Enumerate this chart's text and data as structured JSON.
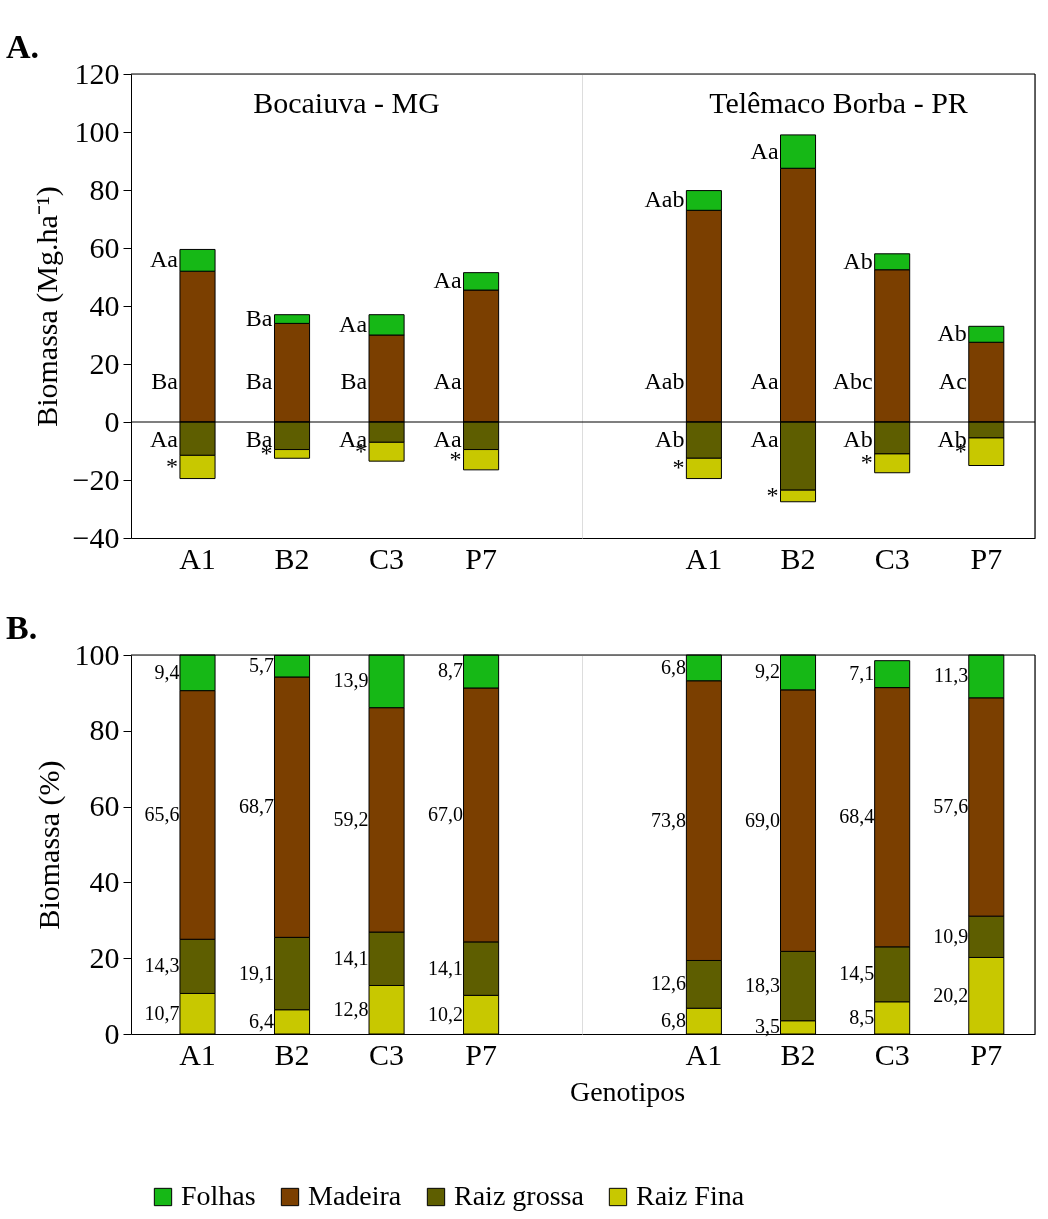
{
  "chart_data": [
    {
      "type": "bar",
      "stacked": true,
      "title": "A.",
      "subtitle": "Bocaiuva - MG",
      "ylabel": "Biomassa (Mg.ha⁻¹)",
      "categories": [
        "A1",
        "B2",
        "C3",
        "P7"
      ],
      "ylim": [
        -40,
        120
      ],
      "yticks": [
        -40,
        -20,
        0,
        20,
        40,
        60,
        80,
        100,
        120
      ],
      "legend": "bottom",
      "series": [
        {
          "name": "Madeira",
          "color": "#7b3f00",
          "values": [
            52,
            34,
            30,
            45.5
          ]
        },
        {
          "name": "Folhas",
          "color": "#16b816",
          "values": [
            7.5,
            3,
            7,
            6
          ]
        },
        {
          "name": "Raiz grossa",
          "color": "#5e5e00",
          "values": [
            -11.5,
            -9.5,
            -7,
            -9.5
          ]
        },
        {
          "name": "Raiz Fina",
          "color": "#c8c800",
          "values": [
            -8,
            -3,
            -6.5,
            -7
          ]
        }
      ],
      "ref_lines": [
        {
          "axis": "y",
          "value": 0
        }
      ],
      "annotations": [
        "Aa",
        "Ba",
        "Aa",
        "*",
        "Ba",
        "Ba",
        "Ba",
        "*",
        "Aa",
        "Ba",
        "Aa",
        "*",
        "Aa",
        "Aa",
        "Aa",
        "*"
      ]
    },
    {
      "type": "bar",
      "stacked": true,
      "subtitle": "Telêmaco Borba - PR",
      "categories": [
        "A1",
        "B2",
        "C3",
        "P7"
      ],
      "ylim": [
        -40,
        120
      ],
      "yticks": [
        -40,
        -20,
        0,
        20,
        40,
        60,
        80,
        100,
        120
      ],
      "tick_labels": "x",
      "series": [
        {
          "color": "#7b3f00",
          "values": [
            73,
            87.5,
            52.5,
            27.5
          ]
        },
        {
          "color": "#16b816",
          "values": [
            6.8,
            11.5,
            5.5,
            5.5
          ]
        },
        {
          "color": "#5e5e00",
          "values": [
            -12.5,
            -23.5,
            -11,
            -5.5
          ]
        },
        {
          "color": "#c8c800",
          "values": [
            -7,
            -4,
            -6.5,
            -9.5
          ]
        }
      ],
      "ref_lines": [
        {
          "axis": "y",
          "value": 0
        }
      ],
      "annotations": [
        "Aab",
        "Aab",
        "Ab",
        "*",
        "Aa",
        "Aa",
        "Aa",
        "*",
        "Ab",
        "Abc",
        "Ab",
        "*",
        "Ab",
        "Ac",
        "Ab",
        "*"
      ]
    },
    {
      "type": "bar",
      "stacked": true,
      "title": "B.",
      "ylabel": "Biomassa (%)",
      "xlabel": "Genotipos",
      "categories": [
        "A1",
        "B2",
        "C3",
        "P7"
      ],
      "ylim": [
        0,
        100
      ],
      "yticks": [
        0,
        20,
        40,
        60,
        80,
        100
      ],
      "series": [
        {
          "color": "#c8c800",
          "values": [
            10.7,
            6.4,
            12.8,
            10.2
          ],
          "value_labels": [
            "10,7",
            "6,4",
            "12,8",
            "10,2"
          ]
        },
        {
          "color": "#5e5e00",
          "values": [
            14.3,
            19.1,
            14.1,
            14.1
          ],
          "value_labels": [
            "14,3",
            "19,1",
            "14,1",
            "14,1"
          ]
        },
        {
          "color": "#7b3f00",
          "values": [
            65.6,
            68.7,
            59.2,
            67.0
          ],
          "value_labels": [
            "65,6",
            "68,7",
            "59,2",
            "67,0"
          ]
        },
        {
          "color": "#16b816",
          "values": [
            9.4,
            5.7,
            13.9,
            8.7
          ],
          "value_labels": [
            "9,4",
            "5,7",
            "13,9",
            "8,7"
          ]
        }
      ]
    },
    {
      "type": "bar",
      "stacked": true,
      "categories": [
        "A1",
        "B2",
        "C3",
        "P7"
      ],
      "ylim": [
        0,
        100
      ],
      "yticks": [
        0,
        20,
        40,
        60,
        80,
        100
      ],
      "tick_labels": "x",
      "series": [
        {
          "color": "#c8c800",
          "values": [
            6.8,
            3.5,
            8.5,
            20.2
          ],
          "value_labels": [
            "6,8",
            "3,5",
            "8,5",
            "20,2"
          ]
        },
        {
          "color": "#5e5e00",
          "values": [
            12.6,
            18.3,
            14.5,
            10.9
          ],
          "value_labels": [
            "12,6",
            "18,3",
            "14,5",
            "10,9"
          ]
        },
        {
          "color": "#7b3f00",
          "values": [
            73.8,
            69.0,
            68.4,
            57.6
          ],
          "value_labels": [
            "73,8",
            "69,0",
            "68,4",
            "57,6"
          ]
        },
        {
          "color": "#16b816",
          "values": [
            6.8,
            9.2,
            7.1,
            11.3
          ],
          "value_labels": [
            "6,8",
            "9,2",
            "7,1",
            "11,3"
          ]
        }
      ]
    }
  ]
}
